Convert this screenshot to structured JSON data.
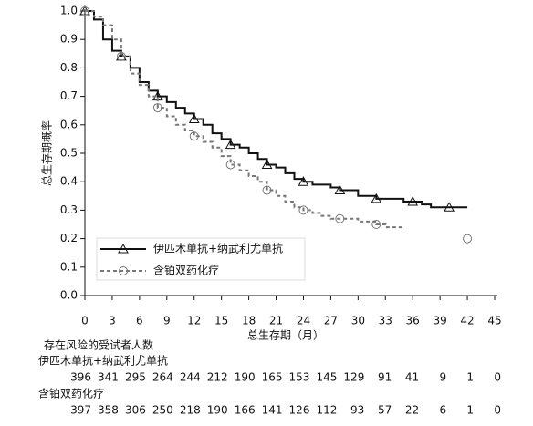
{
  "chart_data": {
    "type": "step",
    "ylabel": "总生存期概率",
    "xlabel": "总生存期（月）",
    "xlim": [
      0,
      45
    ],
    "xticks": [
      0,
      3,
      6,
      9,
      12,
      15,
      18,
      21,
      24,
      27,
      30,
      33,
      36,
      39,
      42,
      45
    ],
    "ylim": [
      0,
      1
    ],
    "yticks": [
      {
        "value": 0,
        "label": "0.0"
      },
      0.1,
      0.2,
      0.3,
      0.4,
      0.5,
      0.6,
      0.7,
      0.8,
      0.9,
      {
        "value": 1,
        "label": "1.0"
      }
    ],
    "legend": "lower left",
    "series": [
      {
        "name": "伊匹木单抗+纳武利尤单抗",
        "color": "#111111",
        "line_style": "solid",
        "marker": "triangle",
        "x": [
          0,
          1,
          2,
          3,
          4,
          5,
          6,
          7,
          8,
          9,
          10,
          11,
          12,
          13,
          14,
          15,
          16,
          17,
          18,
          19,
          20,
          21,
          22,
          23,
          24,
          25,
          26,
          27,
          28,
          29,
          30,
          31,
          32,
          33,
          34,
          35,
          36,
          37,
          38,
          39,
          40,
          41,
          42
        ],
        "values": [
          1.0,
          0.97,
          0.9,
          0.86,
          0.84,
          0.8,
          0.75,
          0.72,
          0.7,
          0.68,
          0.66,
          0.64,
          0.62,
          0.6,
          0.57,
          0.55,
          0.53,
          0.52,
          0.5,
          0.48,
          0.46,
          0.45,
          0.43,
          0.41,
          0.4,
          0.39,
          0.39,
          0.38,
          0.37,
          0.37,
          0.35,
          0.35,
          0.34,
          0.34,
          0.34,
          0.33,
          0.33,
          0.32,
          0.31,
          0.31,
          0.31,
          0.31,
          0.31
        ]
      },
      {
        "name": "含铂双药化疗",
        "color": "#777777",
        "line_style": "dashed",
        "marker": "circle",
        "x": [
          0,
          1,
          2,
          3,
          4,
          5,
          6,
          7,
          8,
          9,
          10,
          11,
          12,
          13,
          14,
          15,
          16,
          17,
          18,
          19,
          20,
          21,
          22,
          23,
          24,
          25,
          26,
          27,
          28,
          29,
          30,
          31,
          32,
          33,
          34,
          35,
          38,
          42
        ],
        "values": [
          1.0,
          0.98,
          0.95,
          0.9,
          0.84,
          0.78,
          0.74,
          0.7,
          0.66,
          0.63,
          0.6,
          0.58,
          0.56,
          0.54,
          0.52,
          0.49,
          0.46,
          0.44,
          0.42,
          0.4,
          0.37,
          0.35,
          0.33,
          0.31,
          0.3,
          0.29,
          0.28,
          0.27,
          0.27,
          0.27,
          0.26,
          0.26,
          0.25,
          0.24,
          0.24,
          0.24,
          null,
          0.2
        ]
      }
    ],
    "risk_table": {
      "title": "存在风险的受试者人数",
      "rows": [
        {
          "name": "伊匹木单抗+纳武利尤单抗",
          "values": [
            396,
            341,
            295,
            264,
            244,
            212,
            190,
            165,
            153,
            145,
            129,
            91,
            41,
            9,
            1,
            0
          ]
        },
        {
          "name": "含铂双药化疗",
          "values": [
            397,
            358,
            306,
            250,
            218,
            190,
            166,
            141,
            126,
            112,
            93,
            57,
            22,
            6,
            1,
            0
          ]
        }
      ]
    }
  }
}
